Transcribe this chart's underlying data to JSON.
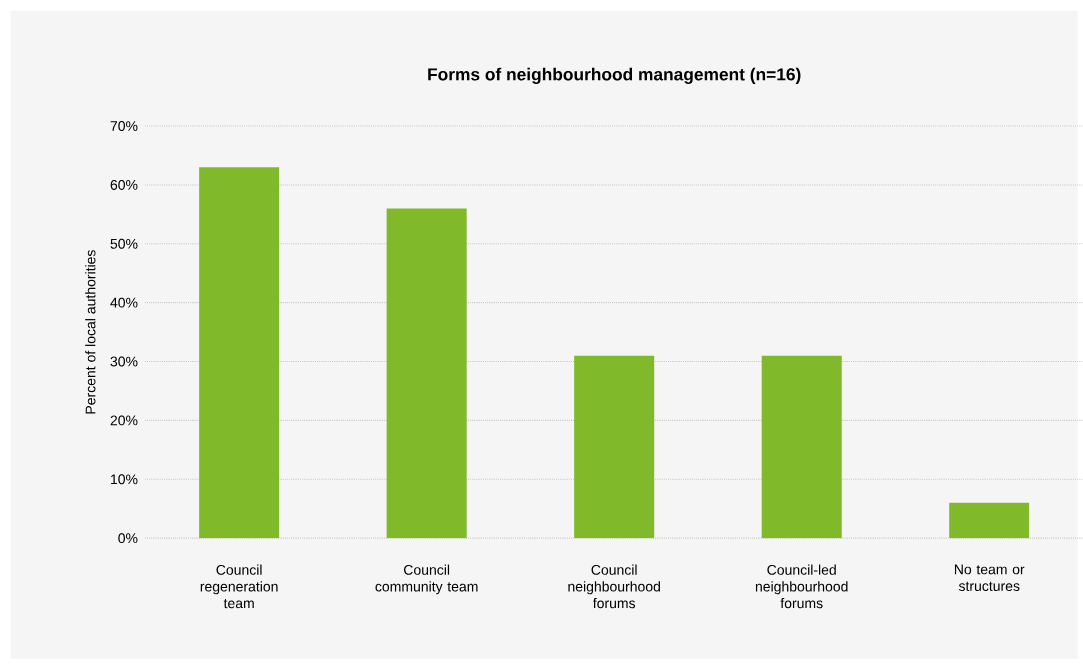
{
  "chart_data": {
    "type": "bar",
    "title": "Forms of neighbourhood management (n=16)",
    "ylabel": "Percent of local authorities",
    "categories": [
      "Council regeneration team",
      "Council community team",
      "Council neighbourhood forums",
      "Council-led neighbourhood forums",
      "No team or structures"
    ],
    "values": [
      63,
      56,
      31,
      31,
      6
    ],
    "color": "#80b929",
    "ylim": [
      0,
      70
    ],
    "yticks": [
      {
        "value": 0,
        "label": "0%"
      },
      {
        "value": 10,
        "label": "10%"
      },
      {
        "value": 20,
        "label": "20%"
      },
      {
        "value": 30,
        "label": "30%"
      },
      {
        "value": 40,
        "label": "40%"
      },
      {
        "value": 50,
        "label": "50%"
      },
      {
        "value": 60,
        "label": "60%"
      },
      {
        "value": 70,
        "label": "70%"
      }
    ],
    "grid": "y"
  }
}
